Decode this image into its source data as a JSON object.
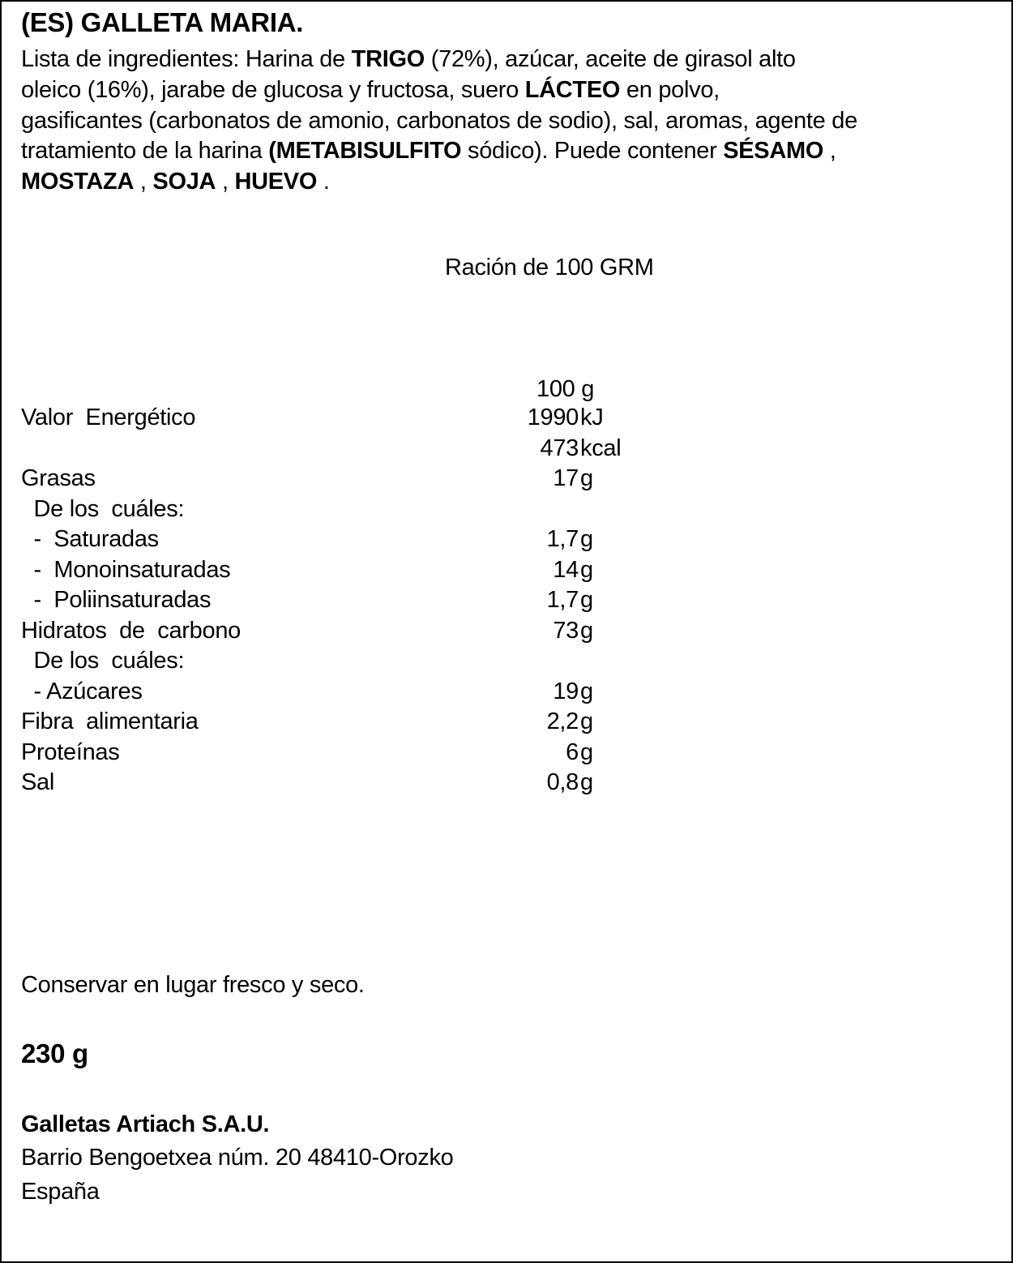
{
  "title": "(ES) GALLETA MARIA.",
  "ingredients_lines": [
    [
      {
        "text": "Lista de ingredientes: Harina de ",
        "bold": false
      },
      {
        "text": "TRIGO",
        "bold": true
      },
      {
        "text": " (72%), azúcar, aceite de girasol alto",
        "bold": false
      }
    ],
    [
      {
        "text": "oleico (16%), jarabe de glucosa y fructosa, suero ",
        "bold": false
      },
      {
        "text": "LÁCTEO",
        "bold": true
      },
      {
        "text": " en polvo,",
        "bold": false
      }
    ],
    [
      {
        "text": "gasificantes (carbonatos de amonio, carbonatos de sodio), sal, aromas, agente de",
        "bold": false
      }
    ],
    [
      {
        "text": "tratamiento de la harina ",
        "bold": false
      },
      {
        "text": "(METABISULFITO",
        "bold": true
      },
      {
        "text": " sódico). Puede contener ",
        "bold": false
      },
      {
        "text": "SÉSAMO",
        "bold": true
      },
      {
        "text": " ,",
        "bold": false
      }
    ],
    [
      {
        "text": "MOSTAZA",
        "bold": true
      },
      {
        "text": " , ",
        "bold": false
      },
      {
        "text": "SOJA",
        "bold": true
      },
      {
        "text": " , ",
        "bold": false
      },
      {
        "text": "HUEVO",
        "bold": true
      },
      {
        "text": " .",
        "bold": false
      }
    ]
  ],
  "serving": "Ración de 100 GRM",
  "column_header": "100 g",
  "nutrition": [
    {
      "label": "Valor  Energético",
      "value": "1990",
      "unit": "kJ"
    },
    {
      "label": "",
      "value": "473",
      "unit": "kcal"
    },
    {
      "label": "Grasas",
      "value": "17",
      "unit": "g"
    },
    {
      "label": "  De los  cuáles:",
      "value": "",
      "unit": ""
    },
    {
      "label": "  -  Saturadas",
      "value": "1,7",
      "unit": "g"
    },
    {
      "label": "  -  Monoinsaturadas",
      "value": "14",
      "unit": "g"
    },
    {
      "label": "  -  Poliinsaturadas",
      "value": "1,7",
      "unit": "g"
    },
    {
      "label": "Hidratos  de  carbono",
      "value": "73",
      "unit": "g"
    },
    {
      "label": "  De los  cuáles:",
      "value": "",
      "unit": ""
    },
    {
      "label": "  - Azúcares",
      "value": "19",
      "unit": "g"
    },
    {
      "label": "Fibra  alimentaria",
      "value": "2,2",
      "unit": "g"
    },
    {
      "label": "Proteínas",
      "value": "6",
      "unit": "g"
    },
    {
      "label": "Sal",
      "value": "0,8",
      "unit": "g"
    }
  ],
  "storage": "Conservar en lugar fresco y seco.",
  "net_weight": "230 g",
  "company": "Galletas Artiach S.A.U.",
  "address": "Barrio Bengoetxea núm. 20 48410-Orozko",
  "country": "España"
}
